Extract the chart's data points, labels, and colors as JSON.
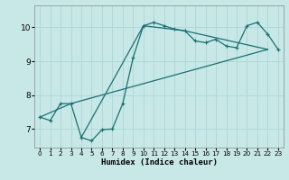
{
  "xlabel": "Humidex (Indice chaleur)",
  "bg_color": "#c8e8e8",
  "line_color": "#1a7070",
  "grid_color": "#b0d8d8",
  "xlim": [
    -0.5,
    23.5
  ],
  "ylim": [
    6.45,
    10.65
  ],
  "line1_x": [
    0,
    1,
    2,
    3,
    4,
    5,
    6,
    7,
    8,
    9,
    10,
    11,
    12,
    13,
    14,
    15,
    16,
    17,
    18,
    19,
    20,
    21,
    22,
    23
  ],
  "line1_y": [
    7.35,
    7.25,
    7.75,
    7.75,
    6.75,
    6.65,
    6.98,
    7.0,
    7.75,
    9.1,
    10.05,
    10.15,
    10.05,
    9.95,
    9.9,
    9.6,
    9.55,
    9.65,
    9.45,
    9.4,
    10.05,
    10.15,
    9.8,
    9.35
  ],
  "line2_x": [
    0,
    3,
    22
  ],
  "line2_y": [
    7.35,
    7.75,
    9.35
  ],
  "line3_x": [
    4,
    10,
    14,
    22
  ],
  "line3_y": [
    6.75,
    10.05,
    9.9,
    9.35
  ],
  "yticks": [
    7,
    8,
    9,
    10
  ],
  "xticks": [
    0,
    1,
    2,
    3,
    4,
    5,
    6,
    7,
    8,
    9,
    10,
    11,
    12,
    13,
    14,
    15,
    16,
    17,
    18,
    19,
    20,
    21,
    22,
    23
  ]
}
